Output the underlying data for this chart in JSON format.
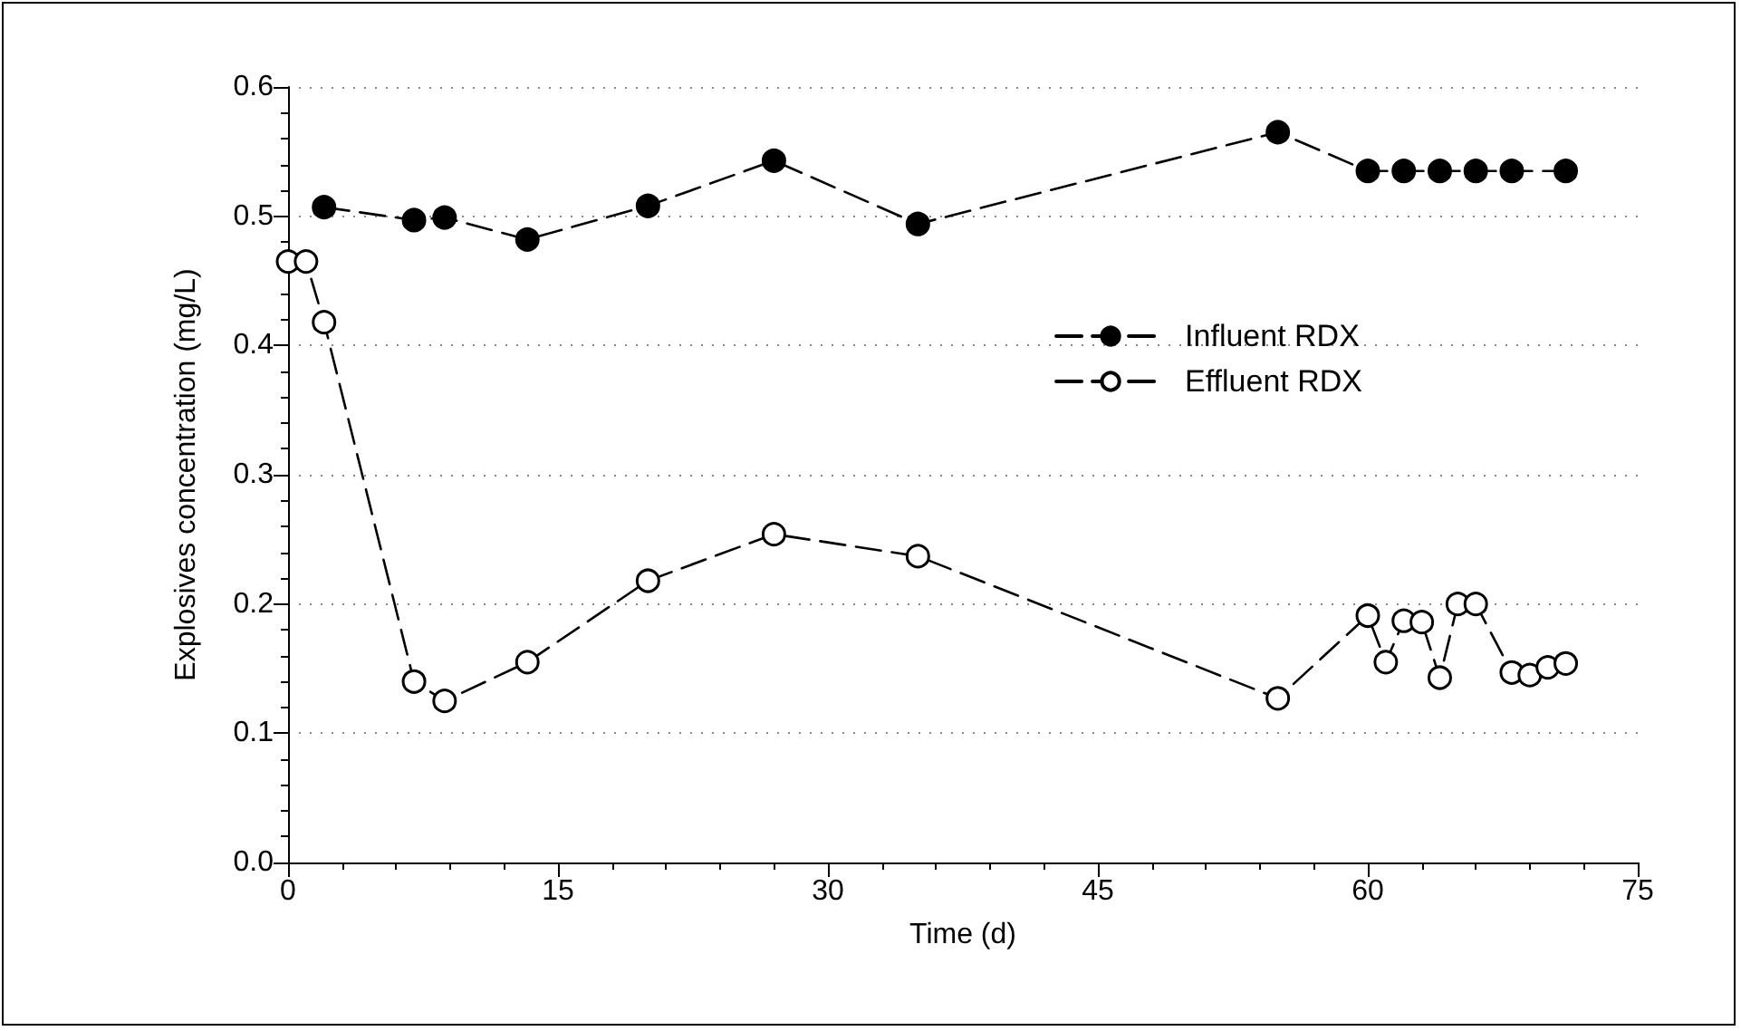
{
  "chart_data": {
    "type": "line",
    "xlabel": "Time (d)",
    "ylabel": "Explosives concentration (mg/L)",
    "series": [
      {
        "name": "Influent RDX",
        "color": "#000000",
        "marker": "circle",
        "x": [
          2,
          7,
          8.7,
          13.3,
          20,
          27,
          35,
          55,
          60,
          62,
          64,
          66,
          68,
          71
        ],
        "values": [
          0.507,
          0.497,
          0.499,
          0.482,
          0.508,
          0.543,
          0.494,
          0.565,
          0.535,
          0.535,
          0.535,
          0.535,
          0.535,
          0.535
        ]
      },
      {
        "name": "Effluent RDX",
        "color": "#000000",
        "colors": [
          "#ffffff",
          "#ffffff",
          "#ffffff",
          "#ffffff",
          "#ffffff",
          "#ffffff",
          "#ffffff",
          "#ffffff",
          "#ffffff",
          "#ffffff",
          "#ffffff",
          "#ffffff",
          "#ffffff",
          "#ffffff",
          "#ffffff",
          "#ffffff",
          "#ffffff",
          "#ffffff",
          "#ffffff",
          "#ffffff",
          "#ffffff"
        ],
        "marker": "circle",
        "x": [
          0,
          1,
          2,
          7,
          8.7,
          13.3,
          20,
          27,
          35,
          55,
          60,
          61,
          62,
          63,
          64,
          65,
          66,
          68,
          69,
          70,
          71
        ],
        "values": [
          0.465,
          0.465,
          0.418,
          0.14,
          0.125,
          0.155,
          0.218,
          0.254,
          0.237,
          0.127,
          0.191,
          0.155,
          0.187,
          0.186,
          0.143,
          0.2,
          0.2,
          0.147,
          0.145,
          0.151,
          0.154
        ]
      }
    ],
    "xlim": [
      0,
      75
    ],
    "xticks": [
      0,
      15,
      30,
      45,
      60,
      75
    ],
    "ylim": [
      0,
      0.6
    ],
    "yticks": [
      {
        "value": 0,
        "label": "0.0"
      },
      0.1,
      0.2,
      0.3,
      0.4,
      0.5,
      0.6
    ],
    "grid": "y",
    "legend": "right",
    "line_style": "dashed"
  }
}
